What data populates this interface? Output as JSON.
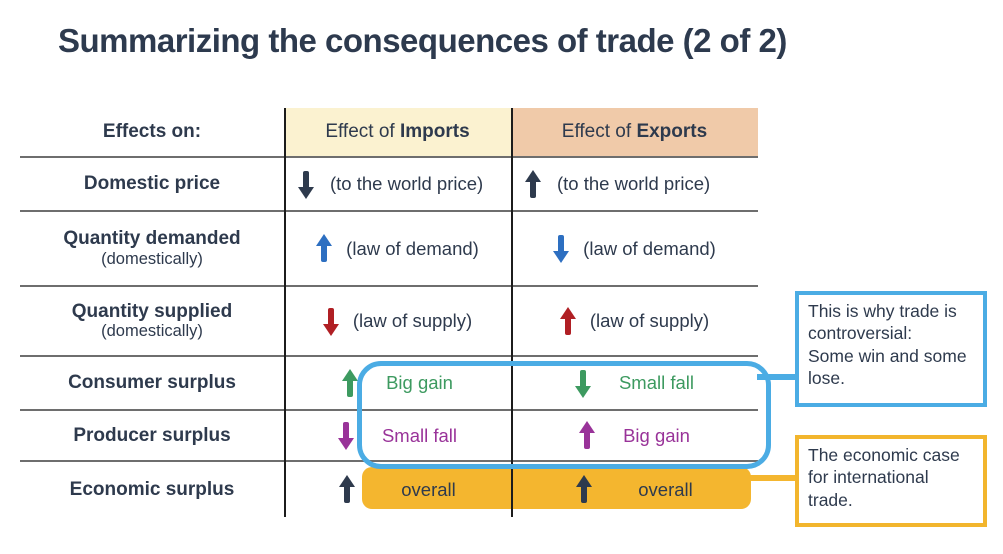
{
  "title": "Summarizing the consequences of trade (2 of 2)",
  "colors": {
    "navy": "#2e3a4d",
    "blue": "#2d6fc1",
    "red": "#b01f24",
    "green": "#3d9a60",
    "purple": "#993399",
    "gold_highlight": "#f4b62f",
    "blue_highlight": "#4bace4",
    "header_imports_bg": "#fbf2d0",
    "header_exports_bg": "#f0caa9"
  },
  "table": {
    "header": {
      "col1": "Effects on:",
      "effect_of": "Effect of ",
      "imports": "Imports",
      "exports": "Exports"
    },
    "rows": [
      {
        "label": "Domestic price",
        "imports": {
          "direction": "down",
          "color": "navy",
          "text": "(to the world price)"
        },
        "exports": {
          "direction": "up",
          "color": "navy",
          "text": "(to the world price)"
        }
      },
      {
        "label": "Quantity demanded",
        "sublabel": "(domestically)",
        "imports": {
          "direction": "up",
          "color": "blue",
          "text": "(law of demand)"
        },
        "exports": {
          "direction": "down",
          "color": "blue",
          "text": "(law of demand)"
        }
      },
      {
        "label": "Quantity supplied",
        "sublabel": "(domestically)",
        "imports": {
          "direction": "down",
          "color": "red",
          "text": "(law of supply)"
        },
        "exports": {
          "direction": "up",
          "color": "red",
          "text": "(law of supply)"
        }
      },
      {
        "label": "Consumer surplus",
        "imports": {
          "direction": "up",
          "color": "green",
          "text": "Big gain"
        },
        "exports": {
          "direction": "down",
          "color": "green",
          "text": "Small fall"
        }
      },
      {
        "label": "Producer surplus",
        "imports": {
          "direction": "down",
          "color": "purple",
          "text": "Small fall"
        },
        "exports": {
          "direction": "up",
          "color": "purple",
          "text": "Big gain"
        }
      },
      {
        "label": "Economic surplus",
        "imports": {
          "direction": "up",
          "color": "navy",
          "text": "overall"
        },
        "exports": {
          "direction": "up",
          "color": "navy",
          "text": "overall"
        }
      }
    ]
  },
  "callouts": {
    "controversial": {
      "text": "This is why trade is controversial:\nSome win and some lose."
    },
    "economic_case": {
      "text": "The economic case for international trade."
    }
  }
}
